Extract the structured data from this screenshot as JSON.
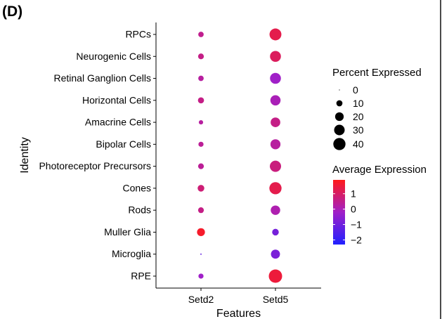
{
  "panel_label": "(D)",
  "chart_data": {
    "type": "dotplot",
    "xlabel": "Features",
    "ylabel": "Identity",
    "features": [
      "Setd2",
      "Setd5"
    ],
    "identities": [
      "RPCs",
      "Neurogenic Cells",
      "Retinal Ganglion Cells",
      "Horizontal Cells",
      "Amacrine Cells",
      "Bipolar Cells",
      "Photoreceptor Precursors",
      "Cones",
      "Rods",
      "Muller Glia",
      "Microglia",
      "RPE"
    ],
    "percent_expressed": {
      "Setd2": [
        8,
        9,
        8,
        10,
        5,
        7,
        9,
        12,
        9,
        17,
        0.5,
        7
      ],
      "Setd5": [
        38,
        32,
        32,
        28,
        25,
        27,
        34,
        40,
        24,
        12,
        22,
        48
      ]
    },
    "average_expression": {
      "Setd2": [
        0.5,
        0.6,
        0.3,
        0.6,
        0.3,
        0.4,
        0.4,
        0.8,
        0.6,
        1.7,
        -1.2,
        -0.2
      ],
      "Setd5": [
        1.3,
        1.1,
        -0.2,
        0.0,
        0.6,
        0.3,
        0.7,
        1.3,
        0.1,
        -0.9,
        -0.8,
        1.5
      ]
    },
    "size_legend": {
      "title": "Percent Expressed",
      "values": [
        0,
        10,
        20,
        30,
        40
      ],
      "labels": [
        "0",
        "10",
        "20",
        "30",
        "40"
      ]
    },
    "color_legend": {
      "title": "Average Expression",
      "range": [
        -2.3,
        1.9
      ],
      "ticks": [
        1,
        0,
        -1,
        -2
      ],
      "tick_labels": [
        "1",
        "0",
        "−1",
        "−2"
      ],
      "low_color": "#2020ff",
      "mid_color": "#a020c8",
      "high_color": "#ff1a1a"
    },
    "grid": false,
    "legend_position": "right"
  }
}
